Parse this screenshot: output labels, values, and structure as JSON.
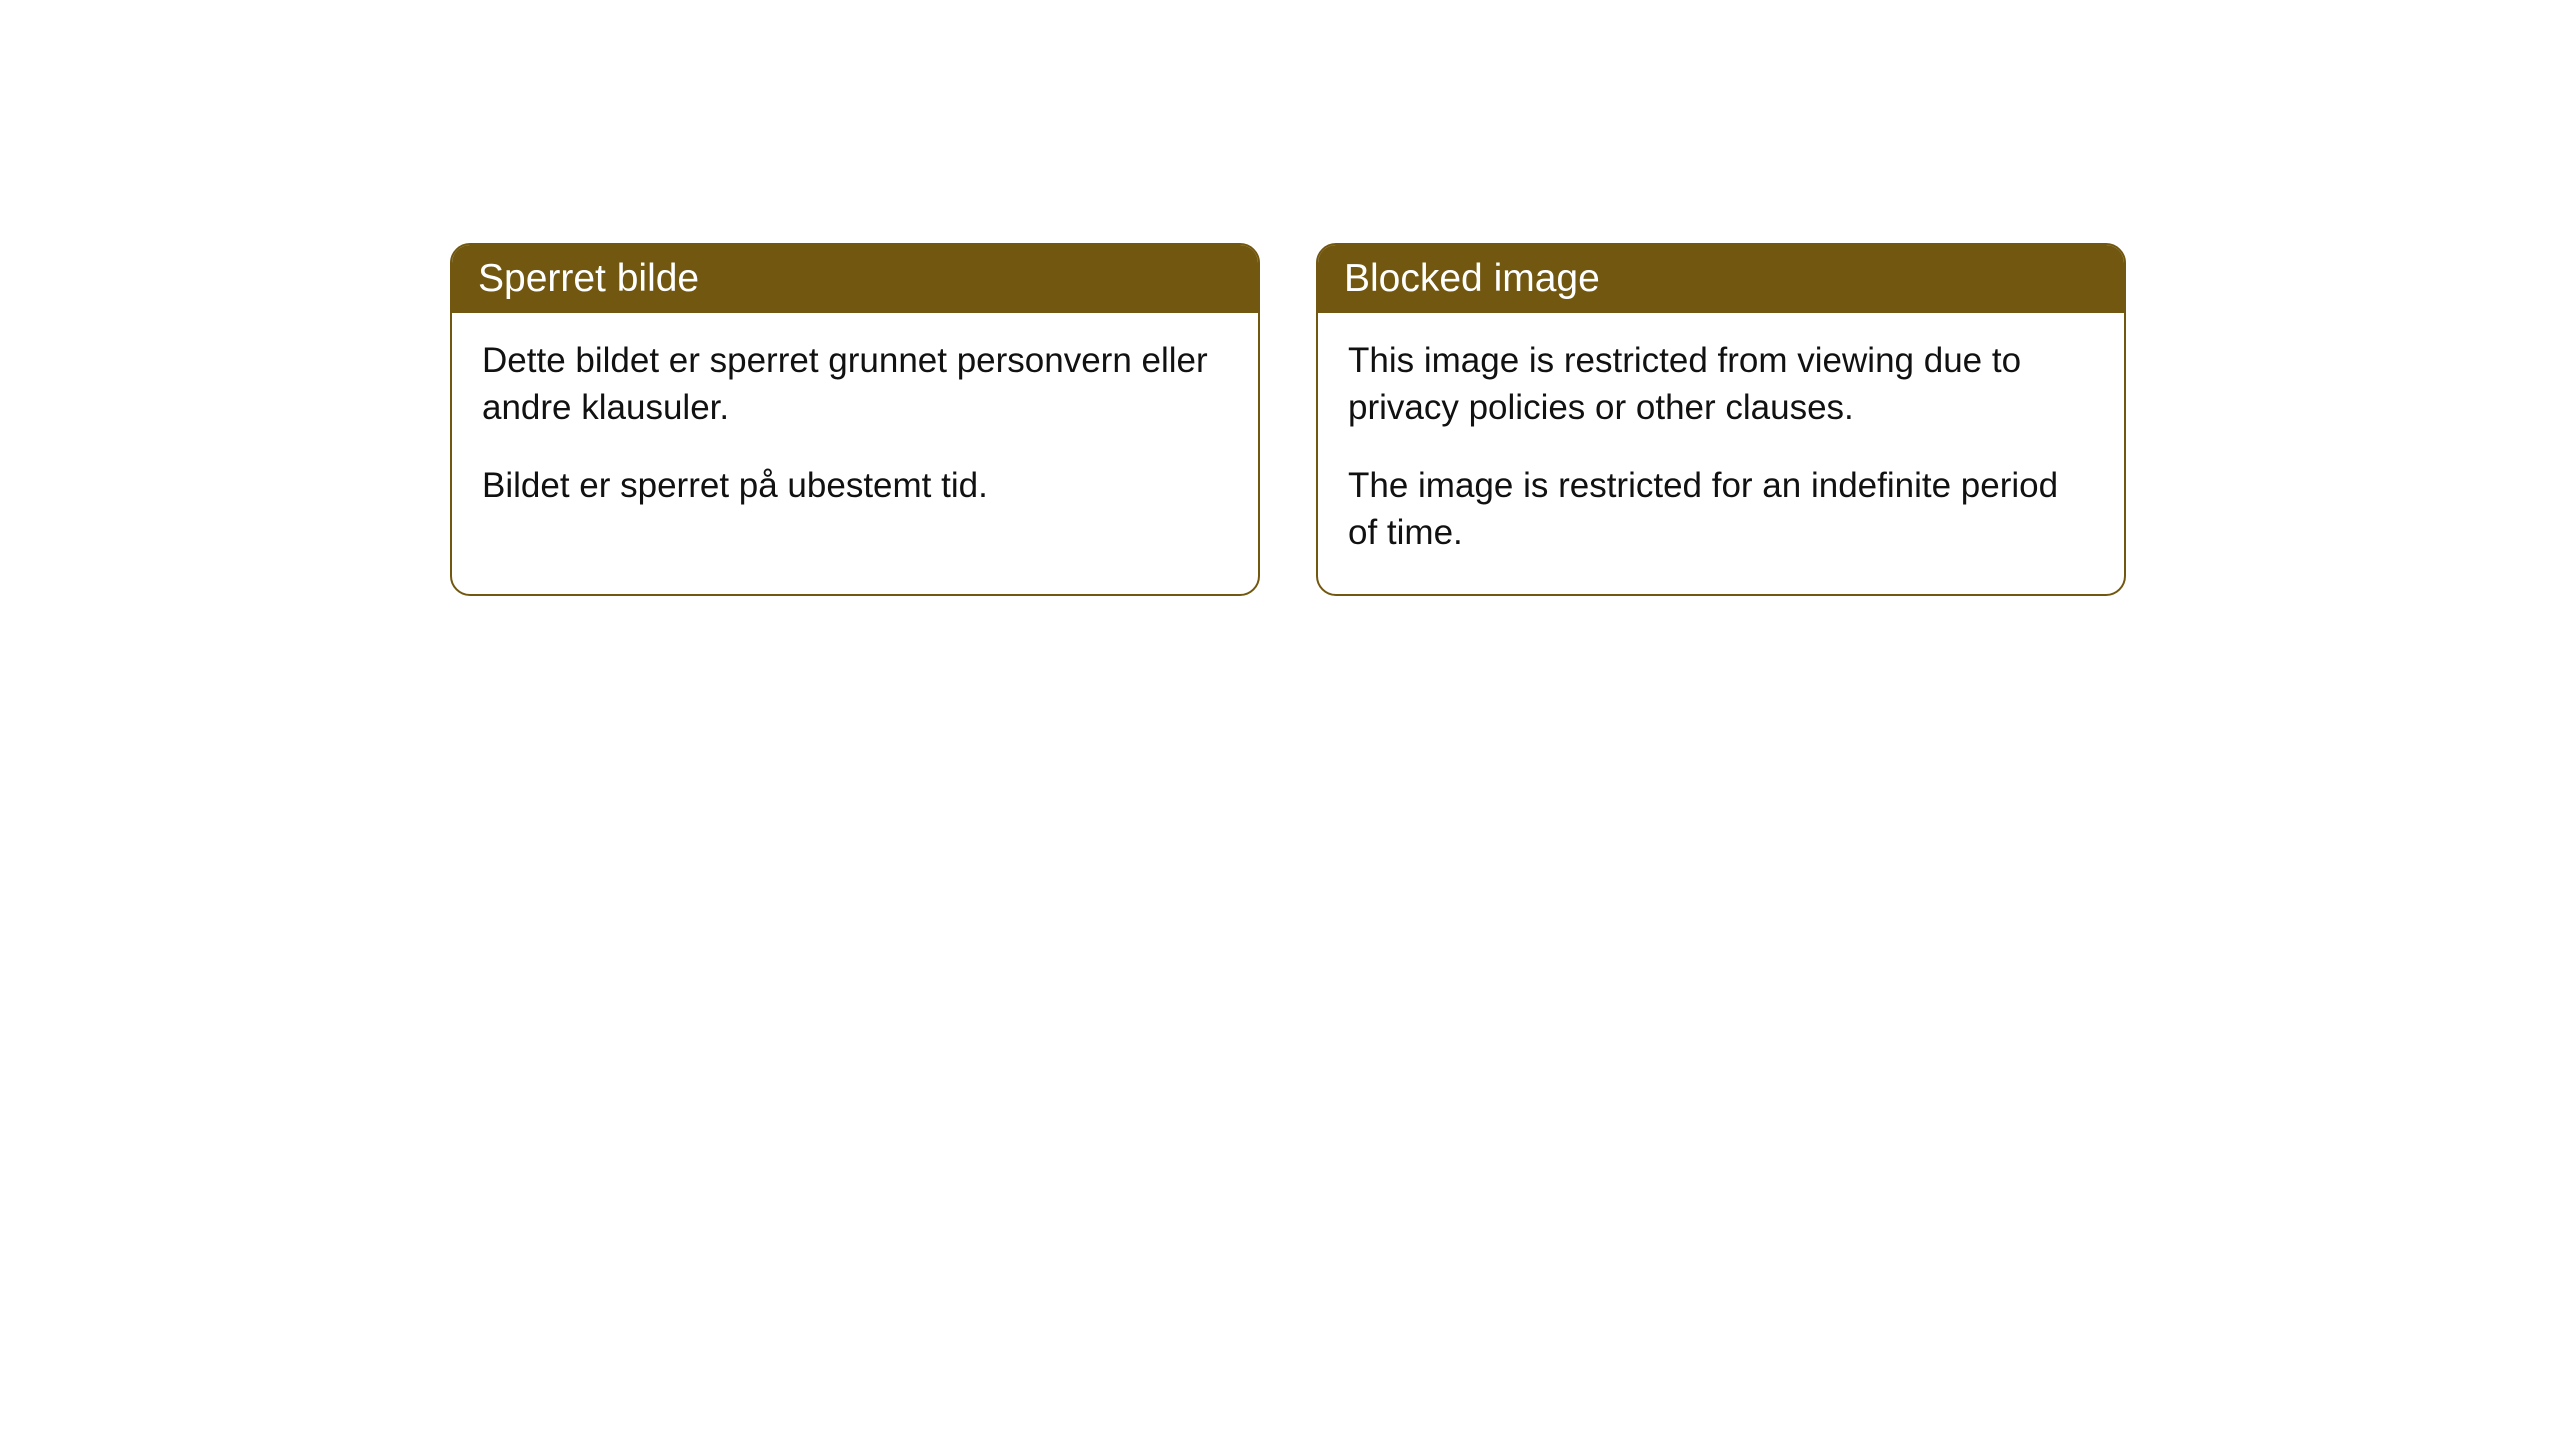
{
  "cards": [
    {
      "title": "Sperret bilde",
      "paragraph1": "Dette bildet er sperret grunnet personvern eller andre klausuler.",
      "paragraph2": "Bildet er sperret på ubestemt tid."
    },
    {
      "title": "Blocked image",
      "paragraph1": "This image is restricted from viewing due to privacy policies or other clauses.",
      "paragraph2": "The image is restricted for an indefinite period of time."
    }
  ],
  "style": {
    "header_background": "#725710",
    "header_text_color": "#ffffff",
    "border_color": "#725710",
    "body_text_color": "#111111",
    "background_color": "#ffffff",
    "border_radius": 20,
    "header_fontsize": 39,
    "body_fontsize": 35
  }
}
